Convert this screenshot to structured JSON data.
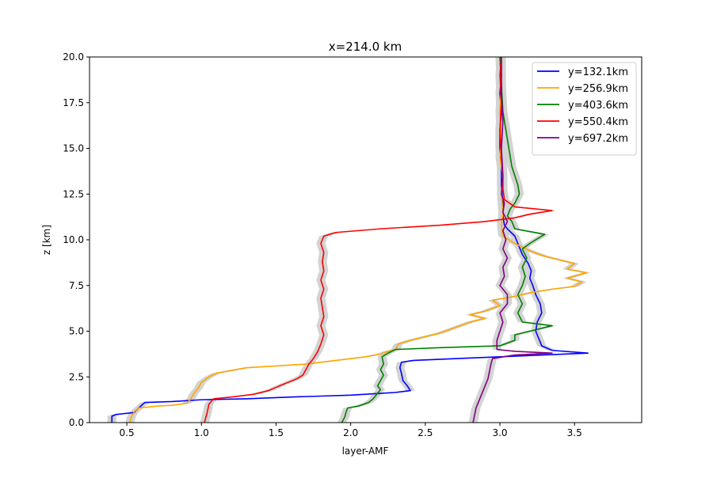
{
  "chart_data": {
    "type": "line",
    "title": "x=214.0 km",
    "xlabel": "layer-AMF",
    "ylabel": "z [km]",
    "xlim": [
      0.25,
      3.95
    ],
    "ylim": [
      0.0,
      20.0
    ],
    "xticks": [
      0.5,
      1.0,
      1.5,
      2.0,
      2.5,
      3.0,
      3.5
    ],
    "xtick_labels": [
      "0.5",
      "1.0",
      "1.5",
      "2.0",
      "2.5",
      "3.0",
      "3.5"
    ],
    "yticks": [
      0.0,
      2.5,
      5.0,
      7.5,
      10.0,
      12.5,
      15.0,
      17.5,
      20.0
    ],
    "ytick_labels": [
      "0.0",
      "2.5",
      "5.0",
      "7.5",
      "10.0",
      "12.5",
      "15.0",
      "17.5",
      "20.0"
    ],
    "grid": false,
    "legend_position": "top-right",
    "uncertainty_band_color": "#d3d3d3",
    "series": [
      {
        "name": "y=132.1km",
        "color": "#0000ff",
        "band": 0.03,
        "points": [
          [
            0.4,
            0.0
          ],
          [
            0.4,
            0.35
          ],
          [
            0.43,
            0.45
          ],
          [
            0.55,
            0.55
          ],
          [
            0.56,
            0.65
          ],
          [
            0.58,
            0.8
          ],
          [
            0.62,
            1.1
          ],
          [
            0.8,
            1.15
          ],
          [
            1.0,
            1.25
          ],
          [
            1.3,
            1.3
          ],
          [
            1.6,
            1.4
          ],
          [
            1.8,
            1.45
          ],
          [
            2.0,
            1.5
          ],
          [
            2.2,
            1.6
          ],
          [
            2.3,
            1.65
          ],
          [
            2.4,
            1.75
          ],
          [
            2.38,
            2.0
          ],
          [
            2.35,
            2.3
          ],
          [
            2.34,
            2.7
          ],
          [
            2.33,
            3.0
          ],
          [
            2.34,
            3.3
          ],
          [
            2.42,
            3.4
          ],
          [
            2.7,
            3.5
          ],
          [
            3.0,
            3.6
          ],
          [
            3.59,
            3.8
          ],
          [
            3.35,
            3.95
          ],
          [
            3.28,
            4.2
          ],
          [
            3.26,
            4.6
          ],
          [
            3.24,
            5.0
          ],
          [
            3.25,
            5.5
          ],
          [
            3.28,
            6.0
          ],
          [
            3.27,
            6.5
          ],
          [
            3.24,
            7.0
          ],
          [
            3.22,
            7.5
          ],
          [
            3.2,
            7.9
          ],
          [
            3.21,
            8.3
          ],
          [
            3.19,
            8.7
          ],
          [
            3.15,
            9.2
          ],
          [
            3.12,
            9.8
          ],
          [
            3.1,
            10.2
          ],
          [
            3.05,
            10.6
          ],
          [
            3.03,
            10.8
          ],
          [
            3.02,
            11.3
          ],
          [
            3.02,
            12.0
          ],
          [
            3.01,
            13.0
          ],
          [
            3.01,
            14.0
          ],
          [
            3.0,
            15.0
          ],
          [
            3.0,
            16.0
          ],
          [
            3.01,
            17.0
          ],
          [
            3.0,
            18.0
          ],
          [
            3.01,
            19.0
          ],
          [
            3.0,
            20.0
          ]
        ]
      },
      {
        "name": "y=256.9km",
        "color": "#ffa500",
        "band": 0.03,
        "points": [
          [
            0.52,
            0.0
          ],
          [
            0.53,
            0.3
          ],
          [
            0.55,
            0.6
          ],
          [
            0.58,
            0.8
          ],
          [
            0.7,
            0.9
          ],
          [
            0.8,
            0.95
          ],
          [
            0.9,
            1.05
          ],
          [
            0.93,
            1.3
          ],
          [
            0.95,
            1.6
          ],
          [
            0.98,
            1.9
          ],
          [
            1.0,
            2.2
          ],
          [
            1.05,
            2.5
          ],
          [
            1.1,
            2.7
          ],
          [
            1.2,
            2.85
          ],
          [
            1.3,
            3.0
          ],
          [
            1.5,
            3.1
          ],
          [
            1.7,
            3.2
          ],
          [
            1.9,
            3.4
          ],
          [
            2.1,
            3.6
          ],
          [
            2.2,
            3.75
          ],
          [
            2.25,
            3.9
          ],
          [
            2.3,
            4.0
          ],
          [
            2.32,
            4.3
          ],
          [
            2.4,
            4.5
          ],
          [
            2.5,
            4.7
          ],
          [
            2.6,
            4.9
          ],
          [
            2.7,
            5.2
          ],
          [
            2.8,
            5.5
          ],
          [
            2.9,
            5.7
          ],
          [
            2.8,
            5.9
          ],
          [
            2.9,
            6.1
          ],
          [
            3.0,
            6.4
          ],
          [
            2.95,
            6.7
          ],
          [
            3.1,
            6.9
          ],
          [
            3.2,
            7.1
          ],
          [
            3.35,
            7.3
          ],
          [
            3.5,
            7.45
          ],
          [
            3.55,
            7.7
          ],
          [
            3.45,
            7.9
          ],
          [
            3.58,
            8.2
          ],
          [
            3.45,
            8.4
          ],
          [
            3.5,
            8.7
          ],
          [
            3.4,
            8.9
          ],
          [
            3.3,
            9.1
          ],
          [
            3.2,
            9.4
          ],
          [
            3.1,
            9.8
          ],
          [
            3.02,
            10.2
          ],
          [
            3.01,
            10.8
          ],
          [
            3.02,
            11.5
          ],
          [
            3.01,
            12.5
          ],
          [
            3.02,
            13.5
          ],
          [
            3.0,
            14.5
          ],
          [
            3.01,
            15.5
          ],
          [
            3.0,
            17.0
          ],
          [
            3.01,
            18.5
          ],
          [
            3.0,
            20.0
          ]
        ]
      },
      {
        "name": "y=403.6km",
        "color": "#008000",
        "band": 0.03,
        "points": [
          [
            1.94,
            0.0
          ],
          [
            1.96,
            0.3
          ],
          [
            1.97,
            0.6
          ],
          [
            1.98,
            0.8
          ],
          [
            2.05,
            0.9
          ],
          [
            2.12,
            1.1
          ],
          [
            2.15,
            1.3
          ],
          [
            2.18,
            1.6
          ],
          [
            2.2,
            1.8
          ],
          [
            2.18,
            2.0
          ],
          [
            2.2,
            2.3
          ],
          [
            2.22,
            2.6
          ],
          [
            2.2,
            2.9
          ],
          [
            2.22,
            3.2
          ],
          [
            2.21,
            3.6
          ],
          [
            2.25,
            3.8
          ],
          [
            2.3,
            4.0
          ],
          [
            2.6,
            4.1
          ],
          [
            3.0,
            4.2
          ],
          [
            3.1,
            4.5
          ],
          [
            3.1,
            4.8
          ],
          [
            3.2,
            5.0
          ],
          [
            3.35,
            5.3
          ],
          [
            3.15,
            5.5
          ],
          [
            3.12,
            6.0
          ],
          [
            3.15,
            6.5
          ],
          [
            3.12,
            7.0
          ],
          [
            3.15,
            7.5
          ],
          [
            3.17,
            8.0
          ],
          [
            3.15,
            8.5
          ],
          [
            3.18,
            9.0
          ],
          [
            3.15,
            9.5
          ],
          [
            3.2,
            9.8
          ],
          [
            3.3,
            10.3
          ],
          [
            3.1,
            10.6
          ],
          [
            3.08,
            11.0
          ],
          [
            3.05,
            11.3
          ],
          [
            3.07,
            11.7
          ],
          [
            3.1,
            12.0
          ],
          [
            3.13,
            12.5
          ],
          [
            3.12,
            13.0
          ],
          [
            3.1,
            13.5
          ],
          [
            3.08,
            14.0
          ],
          [
            3.06,
            15.0
          ],
          [
            3.04,
            16.0
          ],
          [
            3.02,
            17.0
          ],
          [
            3.01,
            18.5
          ],
          [
            3.0,
            20.0
          ]
        ]
      },
      {
        "name": "y=550.4km",
        "color": "#ff0000",
        "band": 0.03,
        "points": [
          [
            1.02,
            0.0
          ],
          [
            1.03,
            0.3
          ],
          [
            1.04,
            0.6
          ],
          [
            1.05,
            1.0
          ],
          [
            1.08,
            1.3
          ],
          [
            1.2,
            1.4
          ],
          [
            1.35,
            1.55
          ],
          [
            1.45,
            1.75
          ],
          [
            1.52,
            2.0
          ],
          [
            1.58,
            2.2
          ],
          [
            1.64,
            2.4
          ],
          [
            1.68,
            2.6
          ],
          [
            1.7,
            2.9
          ],
          [
            1.72,
            3.2
          ],
          [
            1.75,
            3.5
          ],
          [
            1.78,
            3.9
          ],
          [
            1.8,
            4.3
          ],
          [
            1.82,
            4.8
          ],
          [
            1.8,
            5.3
          ],
          [
            1.82,
            5.8
          ],
          [
            1.81,
            6.3
          ],
          [
            1.8,
            6.8
          ],
          [
            1.82,
            7.3
          ],
          [
            1.8,
            7.8
          ],
          [
            1.82,
            8.3
          ],
          [
            1.81,
            8.8
          ],
          [
            1.82,
            9.3
          ],
          [
            1.8,
            9.8
          ],
          [
            1.82,
            10.2
          ],
          [
            1.9,
            10.4
          ],
          [
            2.2,
            10.6
          ],
          [
            2.6,
            10.8
          ],
          [
            2.9,
            11.0
          ],
          [
            3.1,
            11.2
          ],
          [
            3.2,
            11.4
          ],
          [
            3.35,
            11.6
          ],
          [
            3.1,
            11.8
          ],
          [
            3.03,
            12.2
          ],
          [
            3.02,
            12.8
          ],
          [
            3.02,
            13.5
          ],
          [
            3.01,
            14.5
          ],
          [
            3.0,
            16.0
          ],
          [
            3.01,
            17.5
          ],
          [
            3.0,
            19.0
          ],
          [
            3.01,
            20.0
          ]
        ]
      },
      {
        "name": "y=697.2km",
        "color": "#800080",
        "band": 0.03,
        "points": [
          [
            2.82,
            0.0
          ],
          [
            2.83,
            0.4
          ],
          [
            2.84,
            0.8
          ],
          [
            2.86,
            1.2
          ],
          [
            2.88,
            1.6
          ],
          [
            2.9,
            2.0
          ],
          [
            2.92,
            2.4
          ],
          [
            2.93,
            2.8
          ],
          [
            2.94,
            3.2
          ],
          [
            2.95,
            3.5
          ],
          [
            3.1,
            3.7
          ],
          [
            3.35,
            3.8
          ],
          [
            3.1,
            3.9
          ],
          [
            2.98,
            4.0
          ],
          [
            2.98,
            4.5
          ],
          [
            3.0,
            5.0
          ],
          [
            3.02,
            5.5
          ],
          [
            3.0,
            6.0
          ],
          [
            3.05,
            6.5
          ],
          [
            3.05,
            7.0
          ],
          [
            3.0,
            7.5
          ],
          [
            3.03,
            8.0
          ],
          [
            3.02,
            8.5
          ],
          [
            3.05,
            9.0
          ],
          [
            3.02,
            9.5
          ],
          [
            3.04,
            10.0
          ],
          [
            3.02,
            10.5
          ],
          [
            3.05,
            11.0
          ],
          [
            3.02,
            11.5
          ],
          [
            3.03,
            12.0
          ],
          [
            3.01,
            12.5
          ],
          [
            3.02,
            13.5
          ],
          [
            3.01,
            15.0
          ],
          [
            3.02,
            16.5
          ],
          [
            3.01,
            18.0
          ],
          [
            3.01,
            20.0
          ]
        ]
      }
    ]
  }
}
